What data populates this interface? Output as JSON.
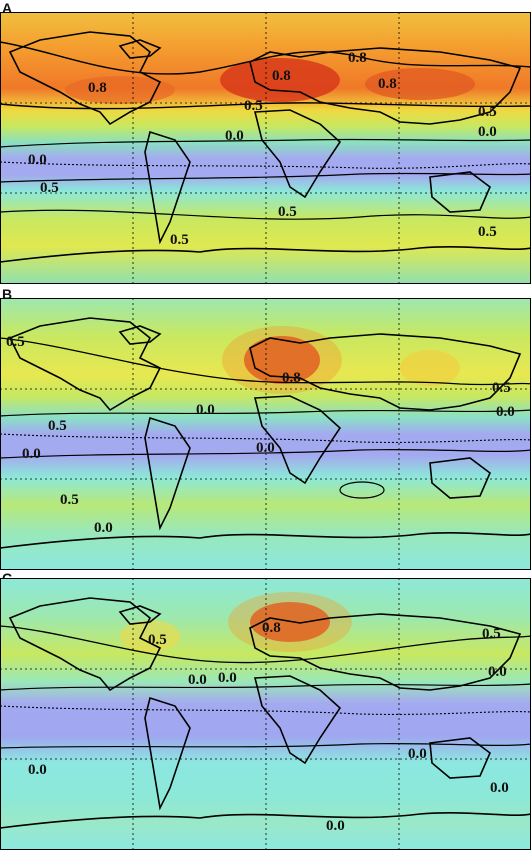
{
  "figure": {
    "panels": [
      {
        "letter": "A",
        "labels": [
          "0.8",
          "0.8",
          "0.8",
          "0.8",
          "0.5",
          "0.5",
          "0.0",
          "0.0",
          "0.0",
          "0.5",
          "0.5",
          "0.5",
          "0.5"
        ]
      },
      {
        "letter": "B",
        "labels": [
          "0.5",
          "0.8",
          "0.5",
          "0.0",
          "0.5",
          "0.0",
          "0.0",
          "0.0",
          "0.5",
          "0.0"
        ]
      },
      {
        "letter": "C",
        "labels": [
          "0.5",
          "0.8",
          "0.5",
          "0.0",
          "0.0",
          "0.0",
          "0.0",
          "0.0",
          "0.0",
          "0.0"
        ]
      }
    ],
    "colors": {
      "deep_red": "#d83a1a",
      "orange": "#f08a2a",
      "yellow": "#f0e040",
      "yellow_green": "#c8e860",
      "green": "#7ed6a0",
      "cyan": "#8ce8e0",
      "lavender": "#a0a8f0",
      "coast": "#000000",
      "grid": "#000000"
    }
  }
}
